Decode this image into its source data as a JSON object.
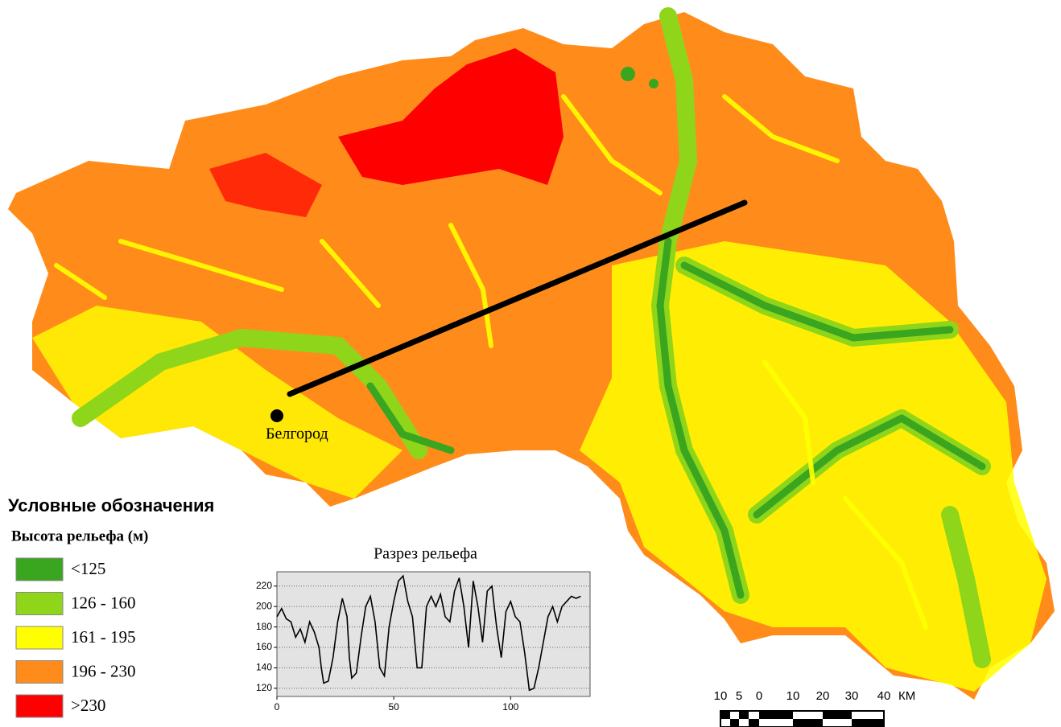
{
  "legend": {
    "title": "Условные обозначения",
    "subtitle": "Высота рельефа (м)",
    "items": [
      {
        "label": "<125",
        "color": "#3aa51e"
      },
      {
        "label": "126 - 160",
        "color": "#8fd61a"
      },
      {
        "label": "161 - 195",
        "color": "#ffff00"
      },
      {
        "label": "196 - 230",
        "color": "#ff8c1a"
      },
      {
        "label": ">230",
        "color": "#ff0000"
      }
    ]
  },
  "city": "Белгород",
  "scale_bar": {
    "labels": [
      "10",
      "5",
      "0",
      "10",
      "20",
      "30",
      "40"
    ],
    "unit": "КМ"
  },
  "chart_data": {
    "type": "line",
    "title": "Разрез рельефа",
    "color": "#000000",
    "grid": true,
    "x": [
      0,
      2,
      4,
      6,
      8,
      10,
      12,
      14,
      16,
      18,
      19,
      20,
      22,
      24,
      26,
      28,
      30,
      31,
      32,
      34,
      36,
      38,
      40,
      42,
      44,
      46,
      48,
      50,
      52,
      54,
      56,
      58,
      60,
      62,
      64,
      66,
      68,
      70,
      72,
      74,
      76,
      78,
      80,
      82,
      84,
      86,
      88,
      90,
      92,
      94,
      96,
      98,
      100,
      102,
      104,
      106,
      108,
      110,
      112,
      114,
      116,
      118,
      120,
      122,
      124,
      126,
      128,
      130
    ],
    "values": [
      190,
      198,
      188,
      185,
      170,
      178,
      165,
      185,
      175,
      160,
      140,
      125,
      127,
      150,
      185,
      208,
      190,
      150,
      130,
      135,
      170,
      200,
      210,
      185,
      140,
      132,
      180,
      205,
      225,
      230,
      205,
      190,
      140,
      140,
      200,
      210,
      200,
      212,
      190,
      185,
      215,
      228,
      200,
      160,
      225,
      200,
      165,
      215,
      220,
      180,
      150,
      195,
      205,
      190,
      185,
      155,
      118,
      120,
      140,
      165,
      190,
      200,
      185,
      200,
      205,
      210,
      208,
      210
    ],
    "xlim": [
      0,
      134
    ],
    "ylim": [
      112,
      234
    ],
    "xticks": [
      0,
      50,
      100
    ],
    "yticks": [
      120,
      140,
      160,
      180,
      200,
      220
    ]
  }
}
